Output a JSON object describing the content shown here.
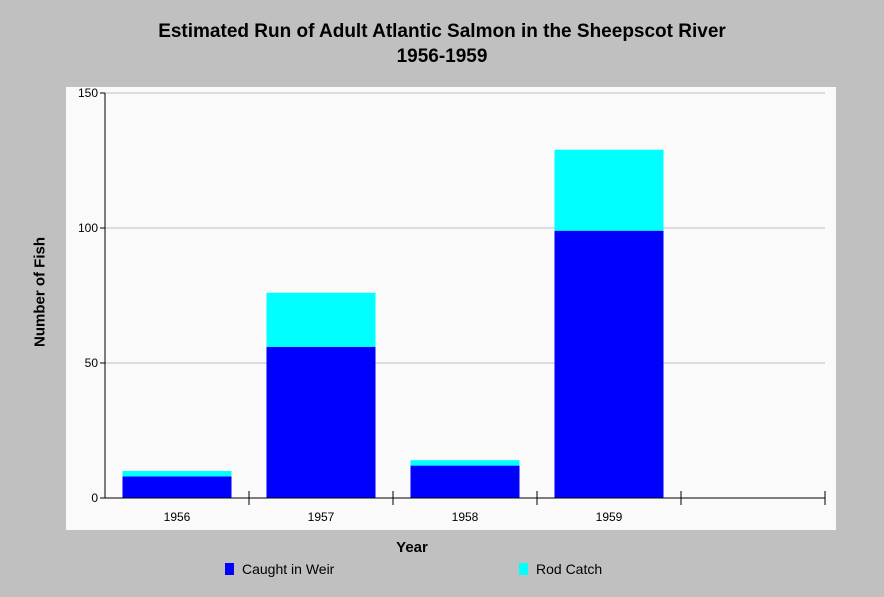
{
  "chart_data": {
    "type": "bar",
    "stacked": true,
    "title": "Estimated Run of Adult Atlantic Salmon in the Sheepscot River",
    "subtitle": "1956-1959",
    "xlabel": "Year",
    "ylabel": "Number of Fish",
    "categories": [
      "1956",
      "1957",
      "1958",
      "1959"
    ],
    "series": [
      {
        "name": "Caught in Weir",
        "values": [
          8,
          56,
          12,
          99
        ],
        "color": "#0000ff"
      },
      {
        "name": "Rod Catch",
        "values": [
          2,
          20,
          2,
          30
        ],
        "color": "#00ffff"
      }
    ],
    "ylim": [
      0,
      150
    ],
    "yticks": [
      0,
      50,
      100,
      150
    ],
    "grid": true,
    "legend_position": "bottom"
  }
}
